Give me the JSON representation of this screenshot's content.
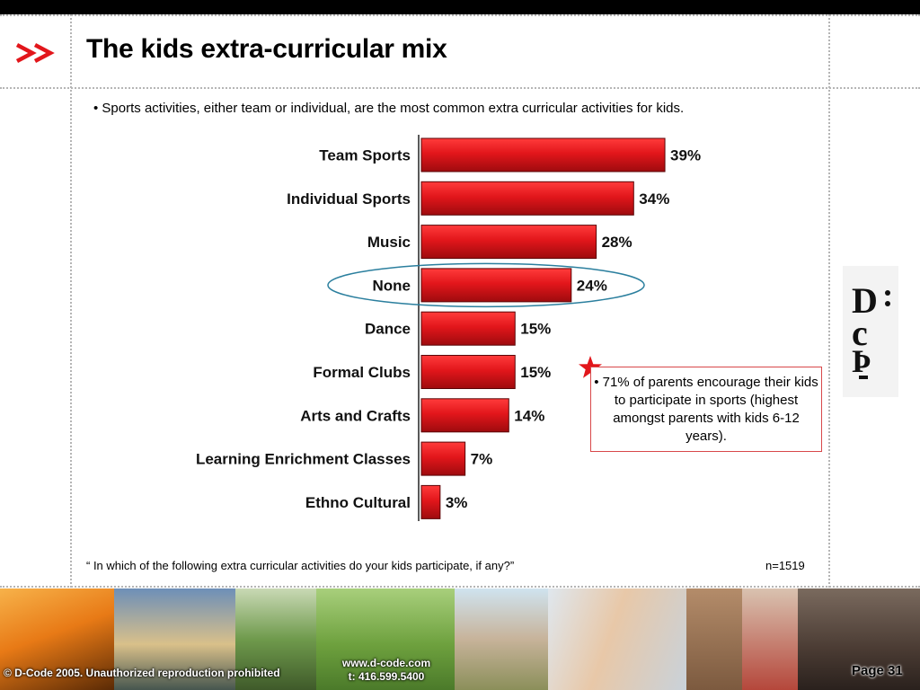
{
  "slide": {
    "title": "The kids extra-curricular mix",
    "intro": "• Sports activities, either team or individual, are the most common extra curricular activities for kids.",
    "callout": "• 71% of parents encourage their kids to participate in sports (highest amongst parents with kids 6-12 years).",
    "question": "“ In which of the following extra curricular activities do your kids participate, if any?”",
    "sample": "n=1519",
    "chevron_icon": "double-chevron-right-icon",
    "star_icon": "star-icon",
    "logo_icon": "d-code-logo",
    "accent_color": "#e2161b"
  },
  "footer": {
    "copyright": "© D-Code 2005.  Unauthorized reproduction prohibited",
    "website": "www.d-code.com",
    "phone": "t: 416.599.5400",
    "page": "Page 31"
  },
  "chart_data": {
    "type": "bar",
    "orientation": "horizontal",
    "categories": [
      "Team Sports",
      "Individual Sports",
      "Music",
      "None",
      "Dance",
      "Formal Clubs",
      "Arts and Crafts",
      "Learning Enrichment Classes",
      "Ethno Cultural"
    ],
    "values": [
      39,
      34,
      28,
      24,
      15,
      15,
      14,
      7,
      3
    ],
    "value_labels": [
      "39%",
      "34%",
      "28%",
      "24%",
      "15%",
      "15%",
      "14%",
      "7%",
      "3%"
    ],
    "highlighted_category": "None",
    "bar_color": "#e2161b",
    "xlim": [
      0,
      60
    ],
    "grid": false,
    "legend": "none"
  }
}
